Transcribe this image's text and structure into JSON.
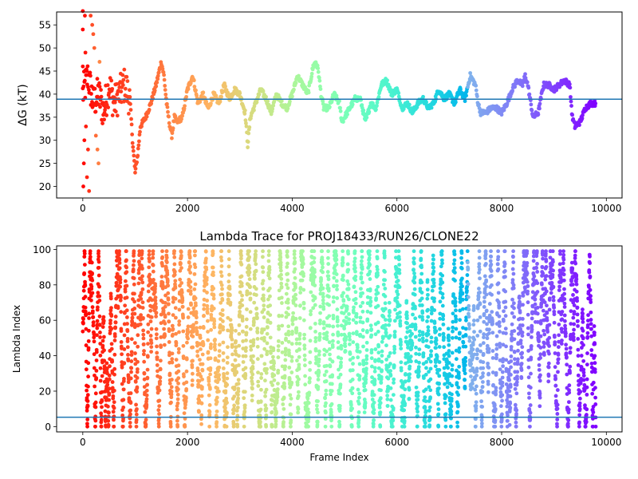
{
  "chart_data": [
    {
      "type": "scatter",
      "title": "",
      "xlabel": "",
      "ylabel": "ΔG (kT)",
      "ylabel_italic_part": "G",
      "xlim": [
        -500,
        10300
      ],
      "ylim": [
        17.5,
        57.8
      ],
      "xticks": [
        0,
        2000,
        4000,
        6000,
        8000,
        10000
      ],
      "yticks": [
        20,
        25,
        30,
        35,
        40,
        45,
        50,
        55
      ],
      "colormap": "rainbow (red at start of run → violet at end)",
      "hline": {
        "y": 38.9,
        "color": "#1f77b4"
      },
      "trace": {
        "x": [
          0,
          100,
          200,
          300,
          400,
          500,
          600,
          700,
          800,
          900,
          950,
          1000,
          1050,
          1100,
          1200,
          1300,
          1400,
          1500,
          1550,
          1600,
          1650,
          1700,
          1750,
          1800,
          1900,
          2000,
          2100,
          2150,
          2200,
          2300,
          2350,
          2400,
          2500,
          2600,
          2700,
          2800,
          2900,
          3000,
          3100,
          3150,
          3200,
          3300,
          3400,
          3500,
          3600,
          3700,
          3800,
          3900,
          4000,
          4100,
          4200,
          4300,
          4400,
          4450,
          4500,
          4550,
          4600,
          4700,
          4800,
          4900,
          4950,
          5000,
          5100,
          5200,
          5300,
          5400,
          5500,
          5600,
          5700,
          5800,
          5900,
          6000,
          6100,
          6200,
          6300,
          6400,
          6500,
          6600,
          6700,
          6800,
          6900,
          7000,
          7100,
          7200,
          7300,
          7400,
          7500,
          7550,
          7600,
          7700,
          7800,
          7900,
          8000,
          8100,
          8200,
          8300,
          8400,
          8450,
          8500,
          8600,
          8700,
          8800,
          8900,
          9000,
          9100,
          9200,
          9300,
          9350,
          9400,
          9500,
          9600,
          9700,
          9800
        ],
        "y": [
          40,
          44,
          38,
          40,
          36,
          42,
          38,
          40,
          42,
          39,
          30,
          23,
          27,
          33,
          35,
          38,
          42,
          47,
          44,
          38,
          34,
          31,
          35,
          34,
          35,
          41,
          44,
          41,
          38,
          40,
          38,
          37,
          40,
          38,
          42,
          39,
          41,
          40,
          36,
          29,
          35,
          38,
          41,
          39,
          36,
          40,
          38,
          37,
          40,
          44,
          42,
          40,
          46,
          47,
          45,
          40,
          37,
          37,
          40,
          38,
          34,
          35,
          37,
          39,
          39,
          34,
          38,
          37,
          42,
          43,
          40,
          41,
          37,
          38,
          36,
          38,
          39,
          37,
          38,
          41,
          39,
          40,
          38,
          41,
          39,
          44,
          42,
          38,
          36,
          36,
          37,
          37,
          36,
          38,
          41,
          43,
          42,
          44,
          42,
          35,
          36,
          42,
          42,
          41,
          42,
          43,
          42,
          35,
          33,
          34,
          37,
          38,
          38
        ]
      },
      "early_scatter": {
        "x": [
          0,
          0,
          0,
          10,
          20,
          30,
          40,
          50,
          60,
          80,
          100,
          120,
          150,
          180,
          200,
          220,
          250,
          280,
          300,
          320
        ],
        "y": [
          54,
          58,
          46,
          20,
          25,
          30,
          57,
          49,
          33,
          22,
          28,
          19,
          57,
          55,
          53,
          50,
          31,
          28,
          25,
          47
        ]
      }
    },
    {
      "type": "scatter",
      "title": "Lambda Trace for PROJ18433/RUN26/CLONE22",
      "xlabel": "Frame Index",
      "ylabel": "Lambda Index",
      "xlim": [
        -500,
        10300
      ],
      "ylim": [
        -3,
        102
      ],
      "xticks": [
        0,
        2000,
        4000,
        6000,
        8000,
        10000
      ],
      "yticks": [
        0,
        20,
        40,
        60,
        80,
        100
      ],
      "colormap": "rainbow (red at start of run → violet at end)",
      "hline": {
        "y": 5.3,
        "color": "#1f77b4"
      },
      "points_per_frame": "one lambda state (0–99) per frame, frames 0–9800",
      "x_range": [
        0,
        9800
      ],
      "y_range": [
        0,
        99
      ]
    }
  ]
}
